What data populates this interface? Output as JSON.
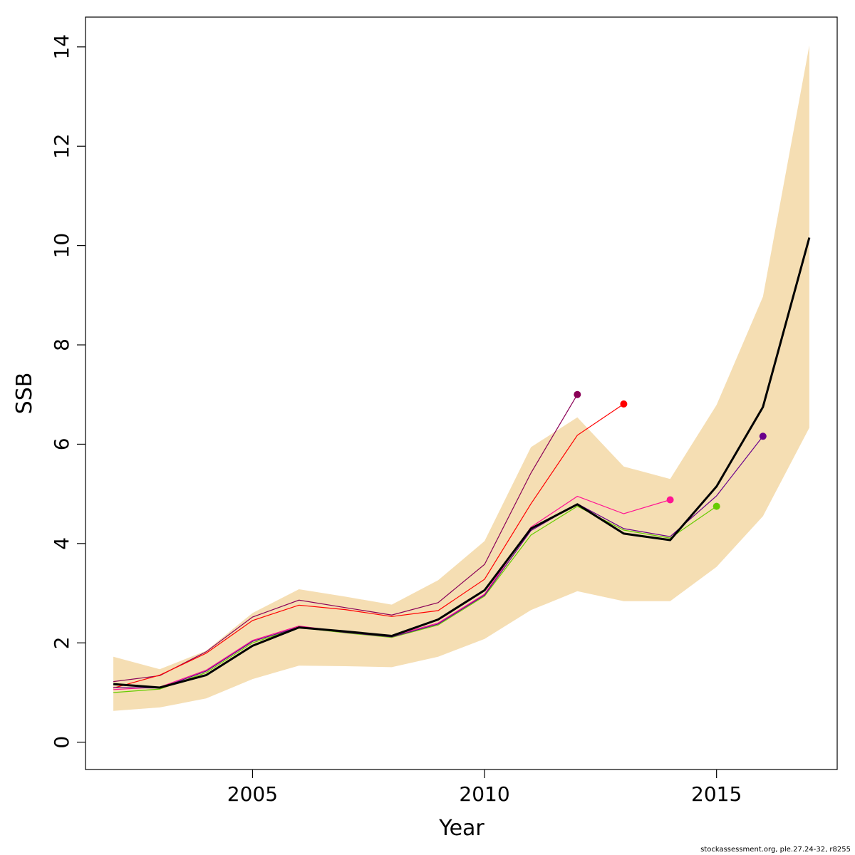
{
  "chart_data": {
    "type": "line",
    "title": "",
    "xlabel": "Year",
    "ylabel": "SSB",
    "xlim": [
      2001.4,
      2017.6
    ],
    "ylim": [
      -0.55,
      14.6
    ],
    "x_ticks": [
      2005,
      2010,
      2015
    ],
    "y_ticks": [
      0,
      2,
      4,
      6,
      8,
      10,
      12,
      14
    ],
    "grid": false,
    "legend": "none",
    "confidence_band": {
      "color": "#F5DEB3",
      "x": [
        2002,
        2003,
        2004,
        2005,
        2006,
        2007,
        2008,
        2009,
        2010,
        2011,
        2012,
        2013,
        2014,
        2015,
        2016,
        2017
      ],
      "lower": [
        0.63,
        0.7,
        0.88,
        1.27,
        1.54,
        1.53,
        1.51,
        1.72,
        2.08,
        2.66,
        3.04,
        2.84,
        2.84,
        3.53,
        4.55,
        6.33
      ],
      "upper": [
        1.72,
        1.47,
        1.84,
        2.6,
        3.08,
        2.93,
        2.77,
        3.26,
        4.05,
        5.94,
        6.54,
        5.55,
        5.3,
        6.79,
        8.97,
        14.03
      ]
    },
    "main_series": {
      "color": "#000000",
      "x": [
        2002,
        2003,
        2004,
        2005,
        2006,
        2007,
        2008,
        2009,
        2010,
        2011,
        2012,
        2013,
        2014,
        2015,
        2016,
        2017
      ],
      "values": [
        1.17,
        1.1,
        1.35,
        1.94,
        2.31,
        2.23,
        2.14,
        2.47,
        3.06,
        4.3,
        4.79,
        4.2,
        4.07,
        5.15,
        6.75,
        10.16
      ]
    },
    "series": [
      {
        "color": "#8B0057",
        "x": [
          2002,
          2003,
          2004,
          2005,
          2006,
          2007,
          2008,
          2009,
          2010,
          2011,
          2012
        ],
        "values": [
          1.22,
          1.34,
          1.82,
          2.52,
          2.86,
          2.71,
          2.56,
          2.81,
          3.58,
          5.42,
          7.0
        ]
      },
      {
        "color": "#FF0000",
        "x": [
          2002,
          2003,
          2004,
          2005,
          2006,
          2007,
          2008,
          2009,
          2010,
          2011,
          2012,
          2013
        ],
        "values": [
          1.09,
          1.35,
          1.79,
          2.45,
          2.76,
          2.67,
          2.53,
          2.65,
          3.28,
          4.8,
          6.18,
          6.81
        ]
      },
      {
        "color": "#FF1493",
        "x": [
          2002,
          2003,
          2004,
          2005,
          2006,
          2007,
          2008,
          2009,
          2010,
          2011,
          2012,
          2013,
          2014
        ],
        "values": [
          1.06,
          1.11,
          1.45,
          2.05,
          2.34,
          2.22,
          2.14,
          2.4,
          2.98,
          4.33,
          4.95,
          4.6,
          4.88
        ]
      },
      {
        "color": "#66CC00",
        "x": [
          2002,
          2003,
          2004,
          2005,
          2006,
          2007,
          2008,
          2009,
          2010,
          2011,
          2012,
          2013,
          2014,
          2015
        ],
        "values": [
          1.0,
          1.07,
          1.4,
          2.0,
          2.31,
          2.2,
          2.11,
          2.36,
          2.94,
          4.17,
          4.75,
          4.27,
          4.11,
          4.75
        ]
      },
      {
        "color": "#6A008B",
        "x": [
          2002,
          2003,
          2004,
          2005,
          2006,
          2007,
          2008,
          2009,
          2010,
          2011,
          2012,
          2013,
          2014,
          2015,
          2016
        ],
        "values": [
          1.1,
          1.09,
          1.43,
          2.03,
          2.32,
          2.21,
          2.12,
          2.38,
          2.96,
          4.26,
          4.8,
          4.3,
          4.14,
          4.96,
          6.16
        ]
      }
    ]
  },
  "footer": "stockassessment.org, ple.27.24-32, r8255"
}
